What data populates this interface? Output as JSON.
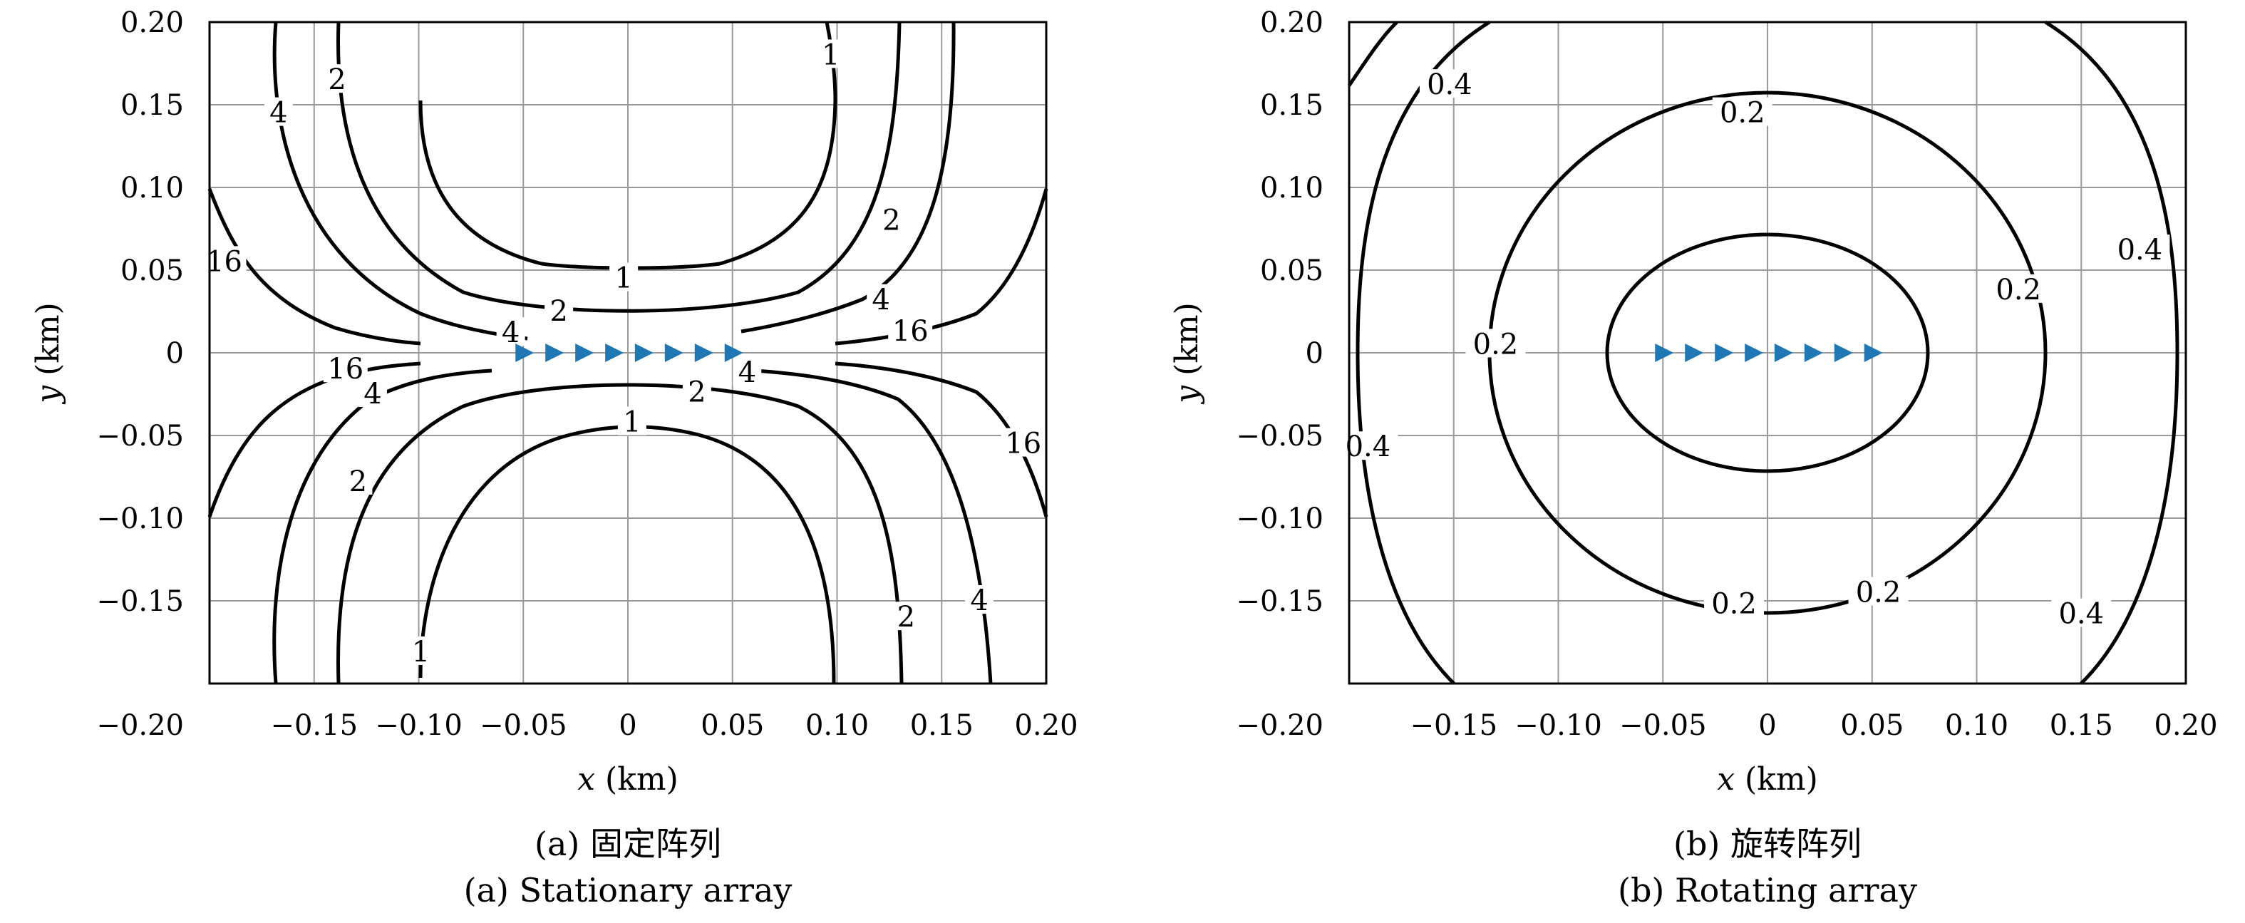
{
  "chart_data": [
    {
      "type": "contour",
      "caption_cn": "(a) 固定阵列",
      "caption_en": "(a) Stationary array",
      "xlabel_var": "x",
      "xlabel_unit": " (km)",
      "ylabel_var": "y",
      "ylabel_unit": " (km)",
      "xlim": [
        -0.2,
        0.2
      ],
      "ylim": [
        -0.2,
        0.2
      ],
      "xticks": [
        -0.15,
        -0.1,
        -0.05,
        0,
        0.05,
        0.1,
        0.15,
        0.2
      ],
      "xtick_labels": [
        "−0.15",
        "−0.10",
        "−0.05",
        "0",
        "0.05",
        "0.10",
        "0.15",
        "0.20"
      ],
      "yticks": [
        0.2,
        0.15,
        0.1,
        0.05,
        0,
        -0.05,
        -0.1,
        -0.15,
        -0.2
      ],
      "ytick_labels": [
        "0.20",
        "0.15",
        "0.10",
        "0.05",
        "0",
        "−0.05",
        "−0.10",
        "−0.15",
        "−0.20"
      ],
      "grid": true,
      "contour_levels": [
        1,
        2,
        4,
        16
      ],
      "array_sensors": {
        "marker": "triangle-right",
        "color": "#1f77b4",
        "x": [
          -0.05,
          -0.0357,
          -0.0214,
          -0.0071,
          0.0071,
          0.0214,
          0.0357,
          0.05
        ],
        "y": [
          0,
          0,
          0,
          0,
          0,
          0,
          0,
          0
        ]
      },
      "contour_labels": [
        {
          "text": "1",
          "x": -0.002,
          "y": 0.045
        },
        {
          "text": "2",
          "x": -0.033,
          "y": 0.025
        },
        {
          "text": "4",
          "x": -0.056,
          "y": 0.012
        },
        {
          "text": "2",
          "x": -0.139,
          "y": 0.165
        },
        {
          "text": "4",
          "x": -0.167,
          "y": 0.145
        },
        {
          "text": "16",
          "x": -0.193,
          "y": 0.055
        },
        {
          "text": "1",
          "x": 0.097,
          "y": 0.18
        },
        {
          "text": "2",
          "x": 0.126,
          "y": 0.08
        },
        {
          "text": "4",
          "x": 0.121,
          "y": 0.032
        },
        {
          "text": "16",
          "x": 0.135,
          "y": 0.013
        },
        {
          "text": "16",
          "x": -0.135,
          "y": -0.01
        },
        {
          "text": "4",
          "x": -0.122,
          "y": -0.025
        },
        {
          "text": "4",
          "x": 0.057,
          "y": -0.012
        },
        {
          "text": "2",
          "x": 0.033,
          "y": -0.024
        },
        {
          "text": "1",
          "x": 0.002,
          "y": -0.042
        },
        {
          "text": "2",
          "x": -0.129,
          "y": -0.078
        },
        {
          "text": "16",
          "x": 0.189,
          "y": -0.055
        },
        {
          "text": "1",
          "x": -0.099,
          "y": -0.181
        },
        {
          "text": "2",
          "x": 0.133,
          "y": -0.16
        },
        {
          "text": "4",
          "x": 0.168,
          "y": -0.15
        }
      ]
    },
    {
      "type": "contour",
      "caption_cn": "(b) 旋转阵列",
      "caption_en": "(b) Rotating array",
      "xlabel_var": "x",
      "xlabel_unit": " (km)",
      "ylabel_var": "y",
      "ylabel_unit": " (km)",
      "xlim": [
        -0.2,
        0.2
      ],
      "ylim": [
        -0.2,
        0.2
      ],
      "xticks": [
        -0.15,
        -0.1,
        -0.05,
        0,
        0.05,
        0.1,
        0.15,
        0.2
      ],
      "xtick_labels": [
        "−0.15",
        "−0.10",
        "−0.05",
        "0",
        "0.05",
        "0.10",
        "0.15",
        "0.20"
      ],
      "yticks": [
        0.2,
        0.15,
        0.1,
        0.05,
        0,
        -0.05,
        -0.1,
        -0.15,
        -0.2
      ],
      "ytick_labels": [
        "0.20",
        "0.15",
        "0.10",
        "0.05",
        "0",
        "−0.05",
        "−0.10",
        "−0.15",
        "−0.20"
      ],
      "grid": true,
      "contour_levels": [
        0.2,
        0.4
      ],
      "array_sensors": {
        "marker": "triangle-right",
        "color": "#1f77b4",
        "x": [
          -0.05,
          -0.0357,
          -0.0214,
          -0.0071,
          0.0071,
          0.0214,
          0.0357,
          0.05
        ],
        "y": [
          0,
          0,
          0,
          0,
          0,
          0,
          0,
          0
        ]
      },
      "contour_labels": [
        {
          "text": "0.4",
          "x": -0.152,
          "y": 0.162
        },
        {
          "text": "0.2",
          "x": -0.012,
          "y": 0.145
        },
        {
          "text": "0.4",
          "x": 0.178,
          "y": 0.062
        },
        {
          "text": "0.2",
          "x": 0.12,
          "y": 0.038
        },
        {
          "text": "0.2",
          "x": -0.13,
          "y": 0.005
        },
        {
          "text": "0.4",
          "x": -0.191,
          "y": -0.057
        },
        {
          "text": "0.2",
          "x": -0.016,
          "y": -0.152
        },
        {
          "text": "0.2",
          "x": 0.053,
          "y": -0.145
        },
        {
          "text": "0.4",
          "x": 0.15,
          "y": -0.158
        }
      ]
    }
  ]
}
